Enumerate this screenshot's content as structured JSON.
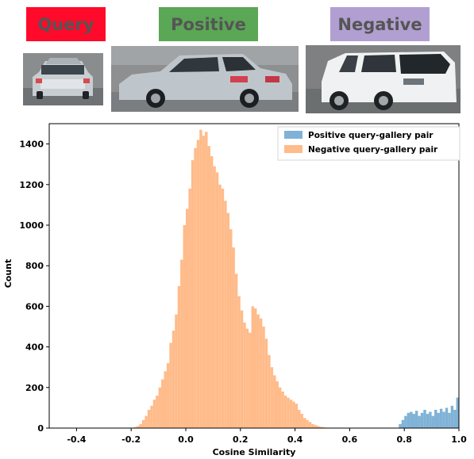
{
  "header": {
    "query_label": "Query",
    "positive_label": "Positive",
    "negative_label": "Negative",
    "query_color": "#ff0a2a",
    "positive_color": "#5aa755",
    "negative_color": "#b29fd1"
  },
  "photos": {
    "query": "sedan-rear-icon",
    "positive": "sedan-rear-icon",
    "negative": "suv-rear-icon"
  },
  "chart_data": {
    "type": "bar",
    "xlabel": "Cosine Similarity",
    "ylabel": "Count",
    "xlim": [
      -0.5,
      1.0
    ],
    "ylim": [
      0,
      1500
    ],
    "xticks": [
      "-0.4",
      "-0.2",
      "0.0",
      "0.2",
      "0.4",
      "0.6",
      "0.8",
      "1.0"
    ],
    "xtick_values": [
      -0.4,
      -0.2,
      0.0,
      0.2,
      0.4,
      0.6,
      0.8,
      1.0
    ],
    "yticks": [
      "0",
      "200",
      "400",
      "600",
      "800",
      "1000",
      "1200",
      "1400"
    ],
    "ytick_values": [
      0,
      200,
      400,
      600,
      800,
      1000,
      1200,
      1400
    ],
    "legend_position": "top-right",
    "bin_width": 0.01,
    "series": [
      {
        "name": "Positive query-gallery pair",
        "color": "#7fb2d6",
        "bin_start": 0.78,
        "values": [
          20,
          40,
          60,
          75,
          80,
          70,
          85,
          60,
          75,
          90,
          70,
          80,
          60,
          90,
          75,
          95,
          80,
          100,
          75,
          110,
          90,
          150
        ]
      },
      {
        "name": "Negative query-gallery pair",
        "color": "#ffbb8a",
        "bin_start": -0.2,
        "values": [
          2,
          5,
          10,
          20,
          40,
          60,
          90,
          110,
          140,
          160,
          200,
          240,
          280,
          320,
          420,
          480,
          560,
          700,
          830,
          1000,
          1080,
          1180,
          1320,
          1380,
          1420,
          1470,
          1440,
          1460,
          1390,
          1340,
          1290,
          1260,
          1200,
          1180,
          1120,
          1060,
          980,
          890,
          760,
          650,
          580,
          520,
          490,
          470,
          600,
          590,
          560,
          540,
          500,
          440,
          360,
          300,
          260,
          230,
          200,
          180,
          160,
          150,
          140,
          130,
          120,
          90,
          70,
          50,
          40,
          30,
          20,
          15,
          10,
          6,
          4,
          2,
          1,
          0,
          0,
          0,
          0,
          0,
          0,
          0,
          0,
          0
        ]
      }
    ]
  }
}
